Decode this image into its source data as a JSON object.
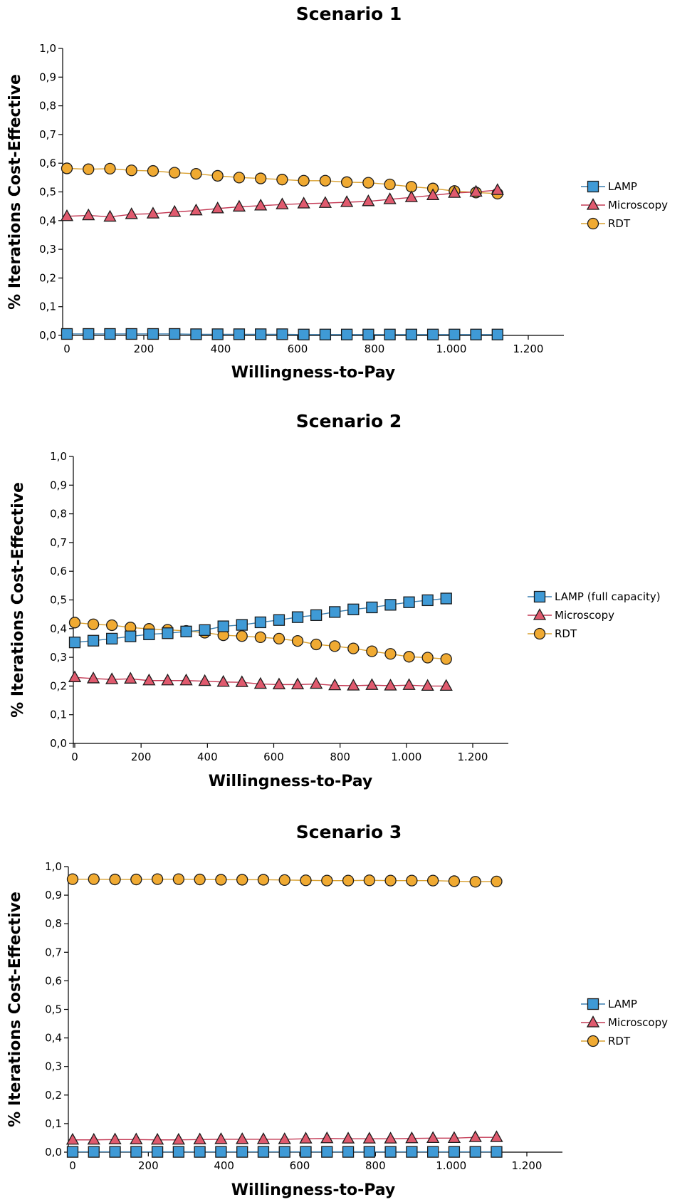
{
  "colors": {
    "lamp": "#3f9ad6",
    "microscopy": "#e05a6e",
    "rdt": "#f0aa32",
    "lamp_line": "#3a7fb0",
    "microscopy_line": "#c43a55",
    "rdt_line": "#d9a030"
  },
  "chart_data": [
    {
      "type": "line",
      "title": "Scenario 1",
      "xlabel": "Willingness-to-Pay",
      "ylabel": "% Iterations Cost-Effective",
      "xlim": [
        0,
        1200
      ],
      "ylim": [
        0,
        1
      ],
      "x_ticks": [
        "0",
        "200",
        "400",
        "600",
        "800",
        "1.000",
        "1.200"
      ],
      "y_ticks": [
        "0,0",
        "0,1",
        "0,2",
        "0,3",
        "0,4",
        "0,5",
        "0,6",
        "0,7",
        "0,8",
        "0,9",
        "1,0"
      ],
      "legend_position": "right",
      "x": [
        0,
        56,
        112,
        168,
        224,
        280,
        336,
        392,
        448,
        504,
        560,
        616,
        672,
        728,
        784,
        840,
        896,
        952,
        1008,
        1064,
        1120
      ],
      "series": [
        {
          "name": "LAMP",
          "marker": "square",
          "color_key": "lamp",
          "values": [
            0.005,
            0.005,
            0.005,
            0.005,
            0.005,
            0.005,
            0.004,
            0.004,
            0.004,
            0.004,
            0.004,
            0.003,
            0.003,
            0.003,
            0.003,
            0.003,
            0.003,
            0.003,
            0.003,
            0.003,
            0.003
          ]
        },
        {
          "name": "Microscopy",
          "marker": "triangle",
          "color_key": "microscopy",
          "values": [
            0.415,
            0.418,
            0.413,
            0.422,
            0.424,
            0.43,
            0.435,
            0.442,
            0.448,
            0.452,
            0.456,
            0.459,
            0.461,
            0.464,
            0.467,
            0.474,
            0.481,
            0.488,
            0.496,
            0.5,
            0.506
          ]
        },
        {
          "name": "RDT",
          "marker": "circle",
          "color_key": "rdt",
          "values": [
            0.582,
            0.579,
            0.581,
            0.575,
            0.573,
            0.567,
            0.563,
            0.556,
            0.55,
            0.547,
            0.543,
            0.539,
            0.539,
            0.534,
            0.532,
            0.526,
            0.518,
            0.512,
            0.503,
            0.498,
            0.494
          ]
        }
      ]
    },
    {
      "type": "line",
      "title": "Scenario 2",
      "xlabel": "Willingness-to-Pay",
      "ylabel": "% Iterations Cost-Effective",
      "xlim": [
        0,
        1200
      ],
      "ylim": [
        0,
        1
      ],
      "x_ticks": [
        "0",
        "200",
        "400",
        "600",
        "800",
        "1.000",
        "1.200"
      ],
      "y_ticks": [
        "0,0",
        "0,1",
        "0,2",
        "0,3",
        "0,4",
        "0,5",
        "0,6",
        "0,7",
        "0,8",
        "0,9",
        "1,0"
      ],
      "legend_position": "right",
      "x": [
        0,
        56,
        112,
        168,
        224,
        280,
        336,
        392,
        448,
        504,
        560,
        616,
        672,
        728,
        784,
        840,
        896,
        952,
        1008,
        1064,
        1120
      ],
      "series": [
        {
          "name": "LAMP (full capacity)",
          "marker": "square",
          "color_key": "lamp",
          "values": [
            0.352,
            0.358,
            0.365,
            0.373,
            0.38,
            0.384,
            0.39,
            0.395,
            0.408,
            0.413,
            0.422,
            0.43,
            0.44,
            0.447,
            0.458,
            0.467,
            0.474,
            0.483,
            0.492,
            0.499,
            0.505
          ]
        },
        {
          "name": "Microscopy",
          "marker": "triangle",
          "color_key": "microscopy",
          "values": [
            0.23,
            0.226,
            0.223,
            0.225,
            0.219,
            0.219,
            0.219,
            0.217,
            0.214,
            0.213,
            0.207,
            0.205,
            0.205,
            0.207,
            0.202,
            0.201,
            0.203,
            0.201,
            0.203,
            0.2,
            0.2
          ]
        },
        {
          "name": "RDT",
          "marker": "circle",
          "color_key": "rdt",
          "values": [
            0.421,
            0.415,
            0.412,
            0.404,
            0.399,
            0.396,
            0.392,
            0.386,
            0.377,
            0.374,
            0.37,
            0.365,
            0.357,
            0.345,
            0.339,
            0.331,
            0.321,
            0.312,
            0.302,
            0.299,
            0.294
          ]
        }
      ]
    },
    {
      "type": "line",
      "title": "Scenario 3",
      "xlabel": "Willingness-to-Pay",
      "ylabel": "% Iterations Cost-Effective",
      "xlim": [
        0,
        1200
      ],
      "ylim": [
        0,
        1
      ],
      "x_ticks": [
        "0",
        "200",
        "400",
        "600",
        "800",
        "1.000",
        "1.200"
      ],
      "y_ticks": [
        "0,0",
        "0,1",
        "0,2",
        "0,3",
        "0,4",
        "0,5",
        "0,6",
        "0,7",
        "0,8",
        "0,9",
        "1,0"
      ],
      "legend_position": "right",
      "x": [
        0,
        56,
        112,
        168,
        224,
        280,
        336,
        392,
        448,
        504,
        560,
        616,
        672,
        728,
        784,
        840,
        896,
        952,
        1008,
        1064,
        1120
      ],
      "series": [
        {
          "name": "LAMP",
          "marker": "square",
          "color_key": "lamp",
          "values": [
            0.001,
            0.001,
            0.001,
            0.001,
            0.001,
            0.001,
            0.001,
            0.001,
            0.001,
            0.001,
            0.001,
            0.001,
            0.001,
            0.001,
            0.001,
            0.001,
            0.001,
            0.001,
            0.001,
            0.001,
            0.001
          ]
        },
        {
          "name": "Microscopy",
          "marker": "triangle",
          "color_key": "microscopy",
          "values": [
            0.043,
            0.043,
            0.044,
            0.044,
            0.043,
            0.043,
            0.044,
            0.045,
            0.045,
            0.045,
            0.045,
            0.047,
            0.048,
            0.047,
            0.047,
            0.047,
            0.048,
            0.049,
            0.049,
            0.052,
            0.052
          ]
        },
        {
          "name": "RDT",
          "marker": "circle",
          "color_key": "rdt",
          "values": [
            0.956,
            0.956,
            0.955,
            0.955,
            0.956,
            0.956,
            0.955,
            0.954,
            0.954,
            0.954,
            0.953,
            0.952,
            0.951,
            0.951,
            0.952,
            0.951,
            0.951,
            0.951,
            0.949,
            0.947,
            0.948
          ]
        }
      ]
    }
  ]
}
